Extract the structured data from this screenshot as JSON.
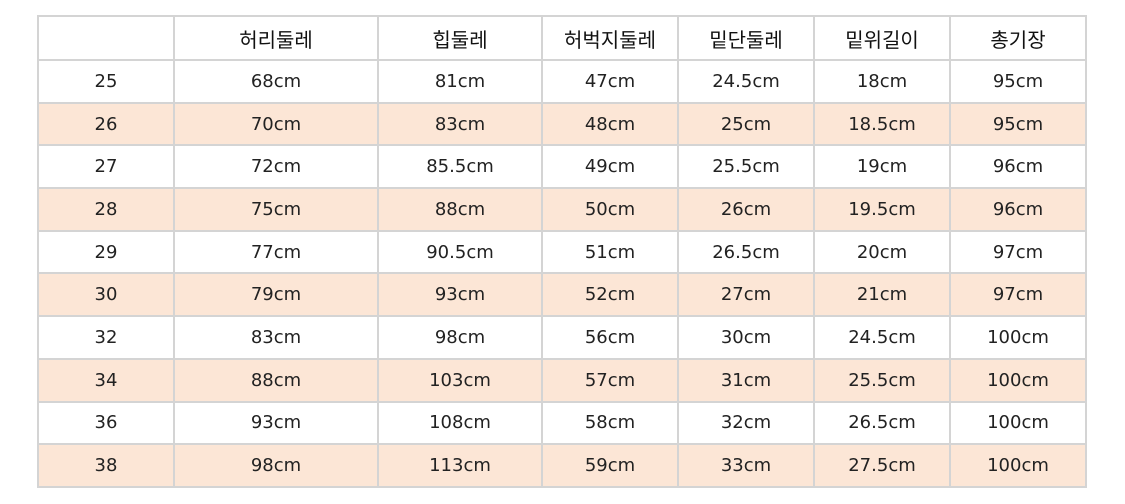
{
  "table": {
    "headers": [
      "",
      "허리둘레",
      "힙둘레",
      "허벅지둘레",
      "밑단둘레",
      "밑위길이",
      "총기장"
    ],
    "rows": [
      [
        "25",
        "68cm",
        "81cm",
        "47cm",
        "24.5cm",
        "18cm",
        "95cm"
      ],
      [
        "26",
        "70cm",
        "83cm",
        "48cm",
        "25cm",
        "18.5cm",
        "95cm"
      ],
      [
        "27",
        "72cm",
        "85.5cm",
        "49cm",
        "25.5cm",
        "19cm",
        "96cm"
      ],
      [
        "28",
        "75cm",
        "88cm",
        "50cm",
        "26cm",
        "19.5cm",
        "96cm"
      ],
      [
        "29",
        "77cm",
        "90.5cm",
        "51cm",
        "26.5cm",
        "20cm",
        "97cm"
      ],
      [
        "30",
        "79cm",
        "93cm",
        "52cm",
        "27cm",
        "21cm",
        "97cm"
      ],
      [
        "32",
        "83cm",
        "98cm",
        "56cm",
        "30cm",
        "24.5cm",
        "100cm"
      ],
      [
        "34",
        "88cm",
        "103cm",
        "57cm",
        "31cm",
        "25.5cm",
        "100cm"
      ],
      [
        "36",
        "93cm",
        "108cm",
        "58cm",
        "32cm",
        "26.5cm",
        "100cm"
      ],
      [
        "38",
        "98cm",
        "113cm",
        "59cm",
        "33cm",
        "27.5cm",
        "100cm"
      ]
    ]
  },
  "colors": {
    "alt_row": "#fce6d6",
    "border": "#d4d4d4"
  }
}
